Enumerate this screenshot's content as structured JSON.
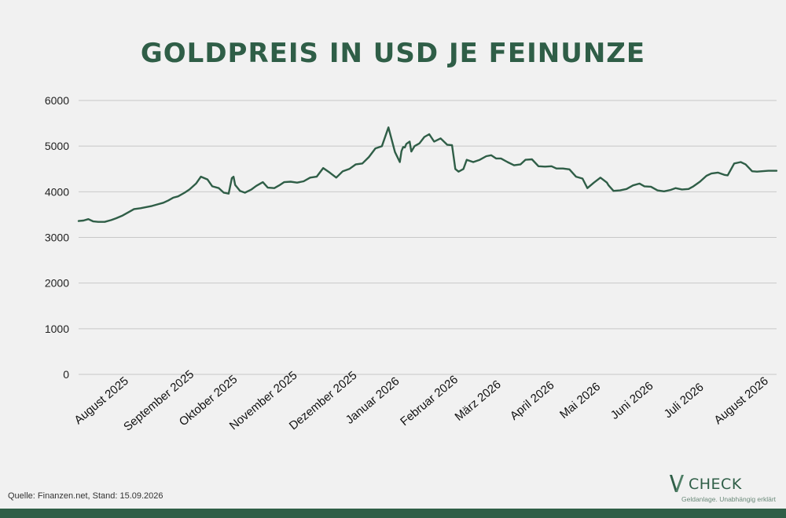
{
  "chart_data": {
    "type": "line",
    "title": "GOLDPREIS IN USD JE FEINUNZE",
    "xlabel": "",
    "ylabel": "",
    "ylim": [
      0,
      6000
    ],
    "yticks": [
      0,
      1000,
      2000,
      3000,
      4000,
      5000,
      6000
    ],
    "grid": true,
    "x_tick_labels": [
      "August 2025",
      "September 2025",
      "Oktober 2025",
      "November 2025",
      "Dezember 2025",
      "Januar 2026",
      "Februar 2026",
      "März 2026",
      "April 2026",
      "Mai 2026",
      "Juni 2026",
      "Juli 2026",
      "August 2026"
    ],
    "line_color": "#2f5e47",
    "series": [
      {
        "x": [
          "2025-07-14",
          "2025-07-17",
          "2025-07-20",
          "2025-07-23",
          "2025-07-26",
          "2025-07-30",
          "2025-08-03",
          "2025-08-06",
          "2025-08-10",
          "2025-08-14",
          "2025-08-17",
          "2025-08-21",
          "2025-08-24",
          "2025-08-28",
          "2025-08-31",
          "2025-09-04",
          "2025-09-07",
          "2025-09-10",
          "2025-09-13",
          "2025-09-17",
          "2025-09-20",
          "2025-09-24",
          "2025-09-27",
          "2025-10-01",
          "2025-10-04",
          "2025-10-08",
          "2025-10-11",
          "2025-10-14",
          "2025-10-16",
          "2025-10-17",
          "2025-10-18",
          "2025-10-21",
          "2025-10-24",
          "2025-10-28",
          "2025-10-31",
          "2025-11-04",
          "2025-11-07",
          "2025-11-11",
          "2025-11-14",
          "2025-11-17",
          "2025-11-21",
          "2025-11-25",
          "2025-11-29",
          "2025-12-03",
          "2025-12-07",
          "2025-12-11",
          "2025-12-15",
          "2025-12-19",
          "2025-12-23",
          "2025-12-27",
          "2025-12-31",
          "2026-01-04",
          "2026-01-08",
          "2026-01-12",
          "2026-01-16",
          "2026-01-20",
          "2026-01-24",
          "2026-01-27",
          "2026-01-28",
          "2026-01-29",
          "2026-01-30",
          "2026-01-31",
          "2026-02-02",
          "2026-02-03",
          "2026-02-05",
          "2026-02-08",
          "2026-02-11",
          "2026-02-14",
          "2026-02-17",
          "2026-02-21",
          "2026-02-25",
          "2026-02-28",
          "2026-03-02",
          "2026-03-04",
          "2026-03-07",
          "2026-03-09",
          "2026-03-13",
          "2026-03-17",
          "2026-03-21",
          "2026-03-24",
          "2026-03-27",
          "2026-03-30",
          "2026-04-03",
          "2026-04-07",
          "2026-04-11",
          "2026-04-14",
          "2026-04-18",
          "2026-04-22",
          "2026-04-26",
          "2026-04-30",
          "2026-05-03",
          "2026-05-07",
          "2026-05-11",
          "2026-05-15",
          "2026-05-19",
          "2026-05-22",
          "2026-05-26",
          "2026-05-30",
          "2026-06-03",
          "2026-06-04",
          "2026-06-07",
          "2026-06-11",
          "2026-06-15",
          "2026-06-19",
          "2026-06-23",
          "2026-06-26",
          "2026-06-30",
          "2026-07-04",
          "2026-07-08",
          "2026-07-12",
          "2026-07-15",
          "2026-07-19",
          "2026-07-23",
          "2026-07-26",
          "2026-07-30",
          "2026-08-03",
          "2026-08-06",
          "2026-08-10",
          "2026-08-14",
          "2026-08-16",
          "2026-08-20",
          "2026-08-24",
          "2026-08-27",
          "2026-08-31",
          "2026-09-03",
          "2026-09-06",
          "2026-09-10",
          "2026-09-15"
        ],
        "y": [
          3360,
          3370,
          3400,
          3350,
          3340,
          3340,
          3380,
          3420,
          3480,
          3560,
          3620,
          3640,
          3660,
          3690,
          3720,
          3760,
          3810,
          3870,
          3900,
          3980,
          4050,
          4180,
          4330,
          4270,
          4120,
          4080,
          3980,
          3960,
          4300,
          4330,
          4150,
          4020,
          3980,
          4050,
          4130,
          4210,
          4090,
          4080,
          4140,
          4210,
          4220,
          4200,
          4230,
          4310,
          4330,
          4520,
          4420,
          4310,
          4450,
          4500,
          4600,
          4620,
          4760,
          4950,
          5000,
          5410,
          4870,
          4650,
          4890,
          4980,
          4970,
          5050,
          5100,
          4880,
          5000,
          5060,
          5200,
          5260,
          5100,
          5170,
          5030,
          5020,
          4500,
          4440,
          4500,
          4700,
          4650,
          4700,
          4780,
          4800,
          4730,
          4730,
          4650,
          4580,
          4600,
          4700,
          4710,
          4560,
          4550,
          4560,
          4510,
          4510,
          4490,
          4330,
          4290,
          4080,
          4200,
          4310,
          4200,
          4140,
          4020,
          4030,
          4060,
          4140,
          4180,
          4120,
          4110,
          4030,
          4010,
          4040,
          4080,
          4050,
          4060,
          4120,
          4220,
          4350,
          4400,
          4420,
          4370,
          4360,
          4620,
          4650,
          4600,
          4450,
          4440,
          4450,
          4460,
          4460
        ]
      }
    ]
  },
  "source": "Quelle: Finanzen.net, Stand: 15.09.2026",
  "logo": {
    "name": "CHECK",
    "tagline": "Geldanlage. Unabhängig erklärt",
    "color": "#2f5e47"
  },
  "colors": {
    "accent": "#2f5e47",
    "grid": "#c8c8c8",
    "background": "#f1f1f1"
  }
}
